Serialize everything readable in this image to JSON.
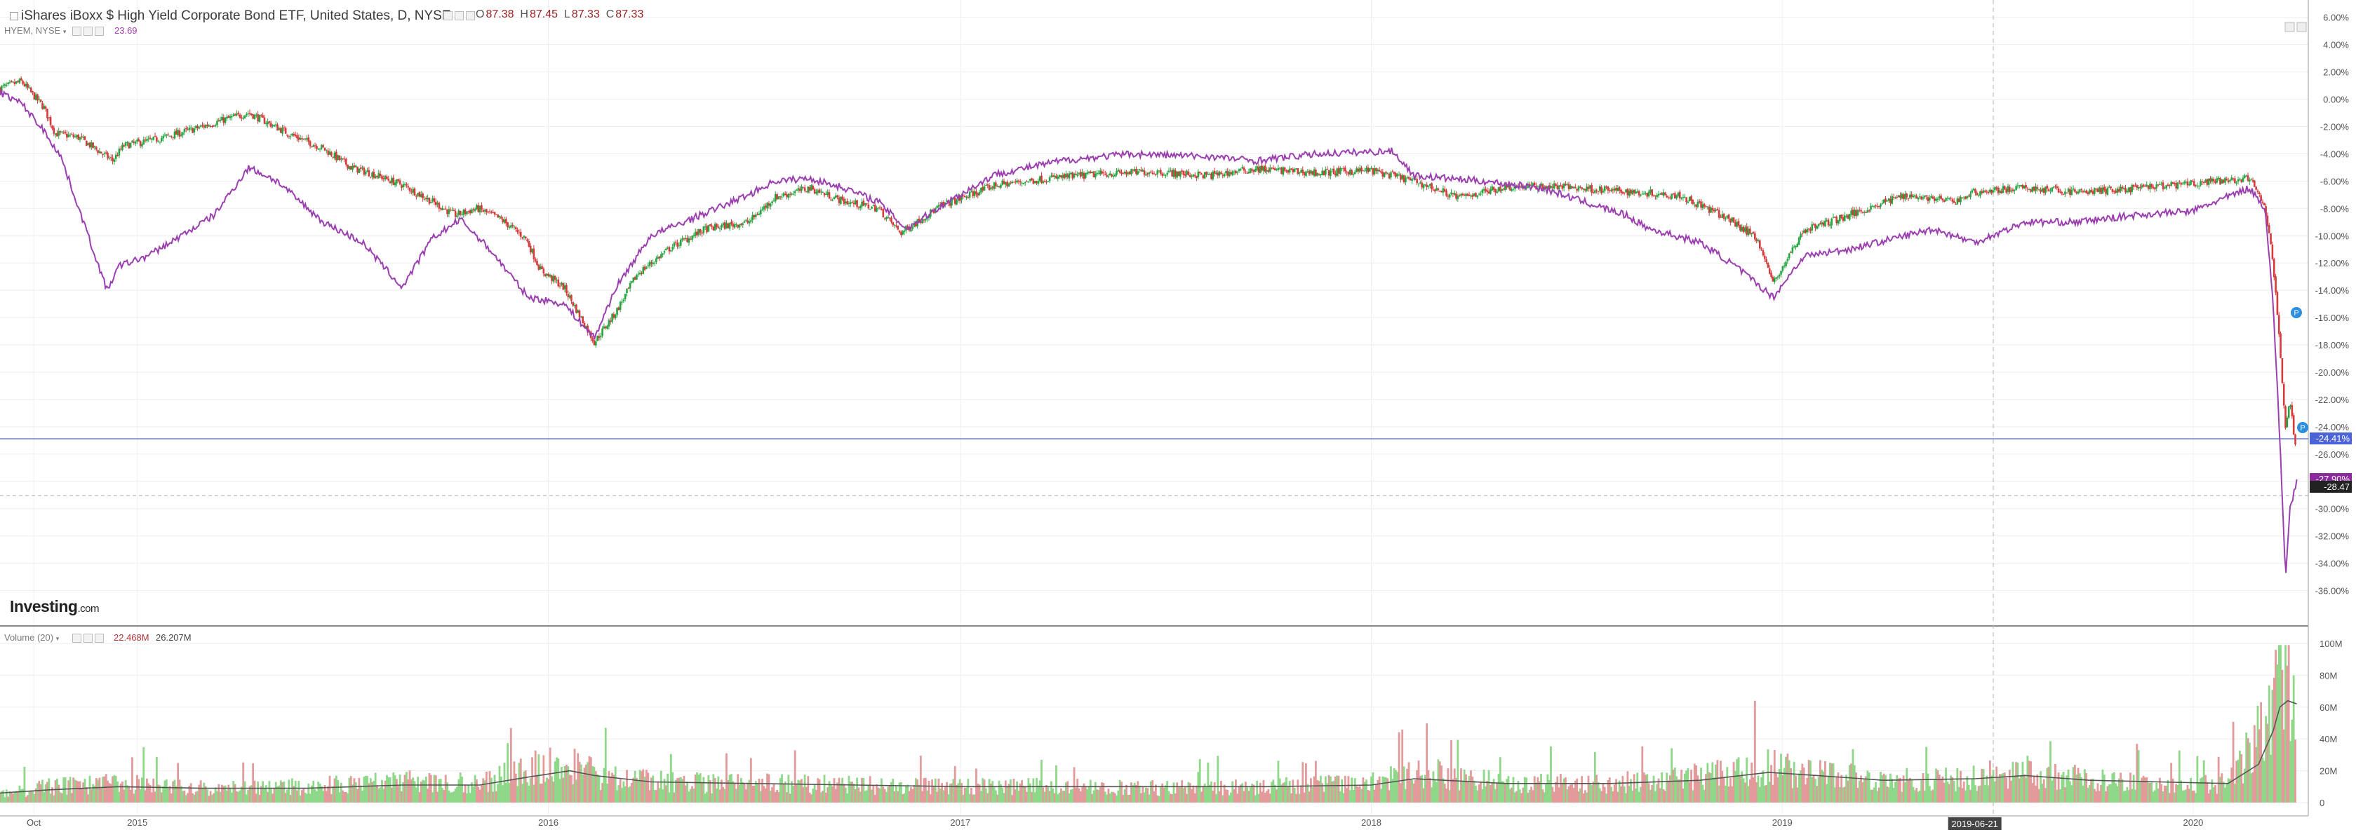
{
  "header": {
    "title": "iShares iBoxx $ High Yield Corporate Bond ETF, United States, D, NYSE",
    "ohlc": {
      "o_label": "O",
      "o": "87.38",
      "h_label": "H",
      "h": "87.45",
      "l_label": "L",
      "l": "87.33",
      "c_label": "C",
      "c": "87.33"
    }
  },
  "compare": {
    "symbol": "HYEM, NYSE",
    "value": "23.69"
  },
  "volume_header": {
    "title": "Volume (20)",
    "value1": "22.468M",
    "value2": "26.207M"
  },
  "logo": {
    "brand": "Investing",
    "suffix": ".com"
  },
  "colors": {
    "up": "#26a641",
    "down": "#d63a3a",
    "compare": "#9b3fb0",
    "vol_up": "#8fd88a",
    "vol_down": "#e39a9a",
    "vol_ma": "#555555",
    "hline": "#6a7ee0"
  },
  "chart_data": [
    {
      "type": "line",
      "y_axis_format": "percent change",
      "ylim": [
        -37,
        6.5
      ],
      "y_ticks": [
        "6.00%",
        "4.00%",
        "2.00%",
        "0.00%",
        "-2.00%",
        "-4.00%",
        "-6.00%",
        "-8.00%",
        "-10.00%",
        "-12.00%",
        "-14.00%",
        "-16.00%",
        "-18.00%",
        "-20.00%",
        "-22.00%",
        "-24.00%",
        "-26.00%",
        "-28.00%",
        "-30.00%",
        "-32.00%",
        "-34.00%",
        "-36.00%"
      ],
      "x_ticks": [
        "Oct",
        "2015",
        "2016",
        "2017",
        "2018",
        "2019",
        "2020"
      ],
      "crosshair_date": "2019-06-21",
      "price_labels": [
        "-24.41%",
        "-27.90%",
        "-28.47"
      ],
      "grid": true,
      "series": [
        {
          "kind": "candlestick-trend",
          "x": [
            "2014-09-01",
            "2014-09-20",
            "2014-10-10",
            "2014-10-20",
            "2014-11-10",
            "2014-12-10",
            "2014-12-20",
            "2015-01-15",
            "2015-02-20",
            "2015-03-15",
            "2015-04-10",
            "2015-05-15",
            "2015-06-15",
            "2015-07-10",
            "2015-07-30",
            "2015-08-25",
            "2015-09-20",
            "2015-10-10",
            "2015-10-30",
            "2015-11-20",
            "2015-12-12",
            "2015-12-25",
            "2016-01-15",
            "2016-02-11",
            "2016-03-01",
            "2016-03-20",
            "2016-04-20",
            "2016-05-20",
            "2016-06-27",
            "2016-07-20",
            "2016-08-20",
            "2016-09-20",
            "2016-10-20",
            "2016-11-09",
            "2016-12-15",
            "2017-02-01",
            "2017-03-20",
            "2017-05-01",
            "2017-06-20",
            "2017-08-10",
            "2017-09-20",
            "2017-11-15",
            "2017-12-31",
            "2018-02-08",
            "2018-03-20",
            "2018-05-01",
            "2018-06-20",
            "2018-08-20",
            "2018-10-01",
            "2018-11-15",
            "2018-12-10",
            "2018-12-24",
            "2019-01-20",
            "2019-03-01",
            "2019-04-20",
            "2019-06-03",
            "2019-06-21",
            "2019-08-05",
            "2019-09-20",
            "2019-11-01",
            "2019-12-31",
            "2020-02-20",
            "2020-03-05",
            "2020-03-12",
            "2020-03-18",
            "2020-03-23",
            "2020-03-27",
            "2020-04-02"
          ],
          "values": [
            0.8,
            1.3,
            -0.6,
            -2.5,
            -2.8,
            -4.5,
            -3.4,
            -3.0,
            -2.2,
            -1.6,
            -1.0,
            -2.5,
            -3.6,
            -5.0,
            -5.5,
            -6.3,
            -7.5,
            -8.5,
            -8.0,
            -8.8,
            -10.2,
            -12.5,
            -13.8,
            -17.8,
            -15.6,
            -12.8,
            -10.8,
            -9.5,
            -9.0,
            -7.2,
            -6.5,
            -7.5,
            -8.0,
            -9.8,
            -7.8,
            -6.3,
            -5.8,
            -5.5,
            -5.3,
            -5.6,
            -5.1,
            -5.4,
            -5.2,
            -6.0,
            -7.2,
            -6.4,
            -6.4,
            -6.8,
            -7.0,
            -8.8,
            -10.2,
            -13.5,
            -9.6,
            -8.5,
            -7.0,
            -7.5,
            -6.8,
            -6.5,
            -6.8,
            -6.6,
            -6.2,
            -5.8,
            -8.0,
            -12.0,
            -18.0,
            -24.0,
            -22.0,
            -26.5
          ]
        },
        {
          "name": "HYEM, NYSE",
          "kind": "line",
          "x": [
            "2014-09-01",
            "2014-09-20",
            "2014-10-10",
            "2014-10-25",
            "2014-11-10",
            "2014-12-05",
            "2014-12-16",
            "2015-01-10",
            "2015-02-15",
            "2015-03-10",
            "2015-04-10",
            "2015-05-05",
            "2015-06-15",
            "2015-07-20",
            "2015-08-24",
            "2015-09-20",
            "2015-10-15",
            "2015-11-10",
            "2015-12-14",
            "2016-01-15",
            "2016-02-11",
            "2016-03-01",
            "2016-04-01",
            "2016-05-15",
            "2016-06-27",
            "2016-07-20",
            "2016-08-20",
            "2016-09-20",
            "2016-10-20",
            "2016-11-14",
            "2016-12-15",
            "2017-02-01",
            "2017-04-01",
            "2017-06-01",
            "2017-08-10",
            "2017-09-20",
            "2017-11-15",
            "2018-01-20",
            "2018-02-08",
            "2018-04-10",
            "2018-06-01",
            "2018-08-15",
            "2018-09-05",
            "2018-10-20",
            "2018-11-20",
            "2018-12-24",
            "2019-01-20",
            "2019-03-01",
            "2019-05-15",
            "2019-06-21",
            "2019-08-05",
            "2019-09-20",
            "2019-11-10",
            "2019-12-31",
            "2020-02-20",
            "2020-03-05",
            "2020-03-12",
            "2020-03-18",
            "2020-03-23",
            "2020-03-27",
            "2020-04-02"
          ],
          "values": [
            0.5,
            -0.3,
            -2.3,
            -4.2,
            -8.0,
            -14.0,
            -12.2,
            -11.5,
            -9.7,
            -8.5,
            -5.0,
            -6.0,
            -9.0,
            -10.5,
            -13.8,
            -10.2,
            -8.8,
            -11.0,
            -14.5,
            -15.0,
            -17.5,
            -13.8,
            -10.0,
            -8.5,
            -7.0,
            -6.0,
            -5.8,
            -6.5,
            -7.5,
            -9.5,
            -7.8,
            -5.5,
            -4.5,
            -4.0,
            -4.2,
            -4.5,
            -4.0,
            -3.8,
            -5.6,
            -6.0,
            -6.5,
            -8.5,
            -9.5,
            -10.5,
            -12.2,
            -14.5,
            -11.5,
            -11.0,
            -9.5,
            -10.5,
            -9.0,
            -9.0,
            -8.5,
            -8.2,
            -6.5,
            -8.0,
            -15.0,
            -25.0,
            -35.0,
            -30.0,
            -28.0
          ]
        }
      ]
    },
    {
      "type": "bar",
      "title": "Volume (20)",
      "ylim": [
        0,
        100
      ],
      "y_ticks": [
        "100M",
        "80M",
        "60M",
        "40M",
        "20M",
        "0"
      ],
      "unit": "M",
      "x": [
        "2014-09-01",
        "2014-10-15",
        "2014-12-16",
        "2015-03-01",
        "2015-06-01",
        "2015-08-24",
        "2015-11-01",
        "2015-12-14",
        "2016-01-20",
        "2016-02-11",
        "2016-04-01",
        "2016-07-01",
        "2016-10-01",
        "2017-01-01",
        "2017-04-01",
        "2017-07-01",
        "2017-10-01",
        "2018-01-01",
        "2018-02-08",
        "2018-05-01",
        "2018-08-01",
        "2018-10-20",
        "2018-12-20",
        "2019-02-01",
        "2019-04-01",
        "2019-06-21",
        "2019-08-05",
        "2019-10-01",
        "2019-12-01",
        "2020-02-01",
        "2020-02-28",
        "2020-03-12",
        "2020-03-18",
        "2020-03-25",
        "2020-04-02"
      ],
      "values": [
        5,
        10,
        12,
        9,
        10,
        14,
        12,
        22,
        25,
        18,
        13,
        12,
        11,
        10,
        10,
        9,
        10,
        12,
        20,
        12,
        12,
        16,
        22,
        18,
        14,
        16,
        20,
        14,
        12,
        12,
        40,
        70,
        80,
        70,
        60
      ],
      "ma20": [
        6,
        8,
        10,
        9,
        9,
        11,
        11,
        16,
        20,
        17,
        13,
        12,
        11,
        10,
        10,
        10,
        10,
        11,
        15,
        12,
        12,
        14,
        19,
        17,
        14,
        15,
        17,
        14,
        13,
        12,
        24,
        45,
        60,
        64,
        62
      ]
    }
  ]
}
